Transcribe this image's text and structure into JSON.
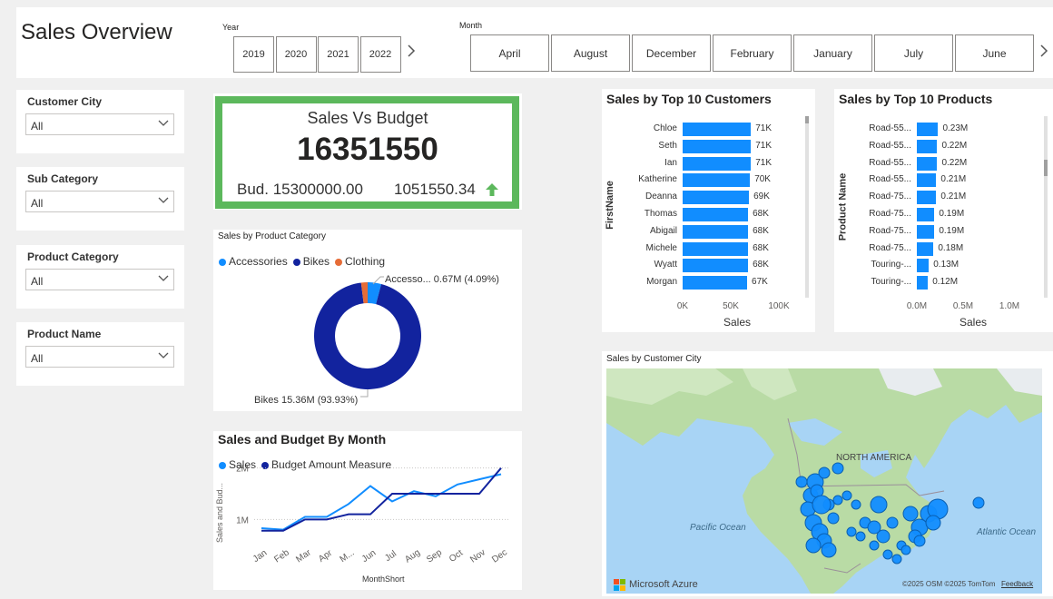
{
  "header": {
    "title": "Sales Overview",
    "year_label": "Year",
    "years": [
      "2019",
      "2020",
      "2021",
      "2022"
    ],
    "month_label": "Month",
    "months": [
      "April",
      "August",
      "December",
      "February",
      "January",
      "July",
      "June"
    ]
  },
  "filters": [
    {
      "label": "Customer City",
      "value": "All"
    },
    {
      "label": "Sub Category",
      "value": "All"
    },
    {
      "label": "Product Category",
      "value": "All"
    },
    {
      "label": "Product Name",
      "value": "All"
    }
  ],
  "kpi": {
    "title": "Sales Vs Budget",
    "value": "16351550",
    "budget": "Bud. 15300000.00",
    "variance": "1051550.34",
    "accent": "#5cb85c"
  },
  "donut": {
    "title": "Sales by Product Category",
    "legend": [
      {
        "name": "Accessories",
        "color": "#118dff"
      },
      {
        "name": "Bikes",
        "color": "#12239e"
      },
      {
        "name": "Clothing",
        "color": "#e66c37"
      }
    ],
    "label_accessories": "Accesso... 0.67M (4.09%)",
    "label_bikes": "Bikes 15.36M (93.93%)"
  },
  "line": {
    "title": "Sales and Budget By Month",
    "legend": [
      {
        "name": "Sales",
        "color": "#118dff"
      },
      {
        "name": "Budget Amount Measure",
        "color": "#12239e"
      }
    ],
    "ylabel": "Sales and Bud...",
    "xlabel": "MonthShort",
    "yticks": [
      "2M",
      "1M"
    ]
  },
  "customers": {
    "title": "Sales by Top 10 Customers",
    "ylabel": "FirstName",
    "xlabel": "Sales",
    "xticks": [
      "0K",
      "50K",
      "100K"
    ]
  },
  "products": {
    "title": "Sales by Top 10 Products",
    "ylabel": "Product Name",
    "xlabel": "Sales",
    "xticks": [
      "0.0M",
      "0.5M",
      "1.0M"
    ]
  },
  "map": {
    "title": "Sales by Customer City",
    "region_label": "NORTH AMERICA",
    "pacific": "Pacific Ocean",
    "atlantic": "Atlantic Ocean",
    "brand": "Microsoft Azure",
    "copyright": "©2025 OSM  ©2025 TomTom",
    "feedback": "Feedback"
  },
  "chart_data": [
    {
      "type": "bar",
      "title": "Sales by Top 10 Customers",
      "categories": [
        "Chloe",
        "Seth",
        "Ian",
        "Katherine",
        "Deanna",
        "Thomas",
        "Abigail",
        "Michele",
        "Wyatt",
        "Morgan"
      ],
      "values": [
        71000,
        71000,
        71000,
        70000,
        69000,
        68000,
        68000,
        68000,
        68000,
        67000
      ],
      "value_labels": [
        "71K",
        "71K",
        "71K",
        "70K",
        "69K",
        "68K",
        "68K",
        "68K",
        "68K",
        "67K"
      ],
      "xlabel": "Sales",
      "ylabel": "FirstName",
      "xlim": [
        0,
        100000
      ]
    },
    {
      "type": "bar",
      "title": "Sales by Top 10 Products",
      "categories": [
        "Road-55...",
        "Road-55...",
        "Road-55...",
        "Road-55...",
        "Road-75...",
        "Road-75...",
        "Road-75...",
        "Road-75...",
        "Touring-...",
        "Touring-..."
      ],
      "values": [
        0.23,
        0.22,
        0.22,
        0.21,
        0.21,
        0.19,
        0.19,
        0.18,
        0.13,
        0.12
      ],
      "value_labels": [
        "0.23M",
        "0.22M",
        "0.22M",
        "0.21M",
        "0.21M",
        "0.19M",
        "0.19M",
        "0.18M",
        "0.13M",
        "0.12M"
      ],
      "xlabel": "Sales",
      "ylabel": "Product Name",
      "xlim": [
        0,
        1.0
      ]
    },
    {
      "type": "pie",
      "title": "Sales by Product Category",
      "categories": [
        "Accessories",
        "Bikes",
        "Clothing"
      ],
      "values": [
        0.67,
        15.36,
        0.32
      ],
      "percent": [
        4.09,
        93.93,
        1.98
      ]
    },
    {
      "type": "line",
      "title": "Sales and Budget By Month",
      "categories": [
        "Jan",
        "Feb",
        "Mar",
        "Apr",
        "M...",
        "Jun",
        "Jul",
        "Aug",
        "Sep",
        "Oct",
        "Nov",
        "Dec"
      ],
      "series": [
        {
          "name": "Sales",
          "values": [
            0.83,
            0.8,
            1.05,
            1.05,
            1.3,
            1.65,
            1.35,
            1.55,
            1.45,
            1.68,
            1.78,
            1.88
          ]
        },
        {
          "name": "Budget Amount Measure",
          "values": [
            0.78,
            0.78,
            1.0,
            1.0,
            1.1,
            1.1,
            1.5,
            1.5,
            1.5,
            1.5,
            1.5,
            2.0
          ]
        }
      ],
      "xlabel": "MonthShort",
      "ylabel": "Sales and Bud...",
      "ylim": [
        0.6,
        2.1
      ]
    }
  ]
}
